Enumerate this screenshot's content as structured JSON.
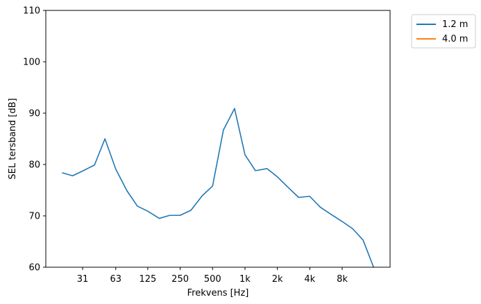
{
  "chart_data": {
    "type": "line",
    "title": "",
    "xlabel": "Frekvens [Hz]",
    "ylabel": "SEL tersband [dB]",
    "x_scale": "log",
    "ylim": [
      60,
      110
    ],
    "xticks": [
      31,
      63,
      125,
      250,
      500,
      1000,
      2000,
      4000,
      8000
    ],
    "xtick_labels": [
      "31",
      "63",
      "125",
      "250",
      "500",
      "1k",
      "2k",
      "4k",
      "8k"
    ],
    "yticks": [
      60,
      70,
      80,
      90,
      100,
      110
    ],
    "ytick_labels": [
      "60",
      "70",
      "80",
      "90",
      "100",
      "110"
    ],
    "grid": false,
    "legend_placement": "outside-top-right",
    "series": [
      {
        "name": "1.2 m",
        "color": "#1f77b4",
        "x": [
          20,
          25,
          31.5,
          40,
          50,
          63,
          80,
          100,
          125,
          160,
          200,
          250,
          315,
          400,
          500,
          630,
          800,
          1000,
          1250,
          1600,
          2000,
          2500,
          3150,
          4000,
          5000,
          6300,
          8000,
          10000,
          12500,
          16000
        ],
        "values": [
          78.4,
          77.8,
          78.8,
          79.9,
          85.0,
          79.1,
          74.9,
          71.9,
          70.9,
          69.5,
          70.1,
          70.1,
          71.1,
          73.9,
          75.8,
          86.7,
          90.9,
          81.9,
          78.8,
          79.2,
          77.6,
          75.6,
          73.6,
          73.8,
          71.7,
          70.3,
          68.9,
          67.5,
          65.3,
          59.5
        ]
      },
      {
        "name": "4.0 m",
        "color": "#ff7f0e",
        "x": [],
        "values": []
      }
    ]
  }
}
